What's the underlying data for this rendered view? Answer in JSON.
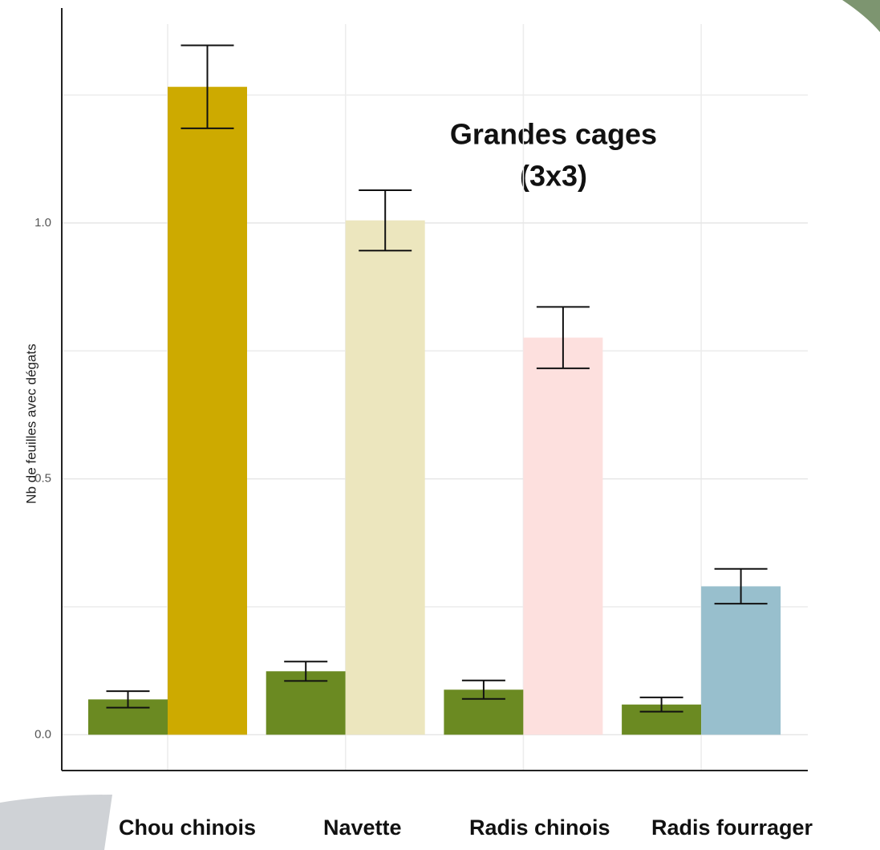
{
  "chart_data": {
    "type": "bar",
    "y_label": "Nb de feuilles avec dégats",
    "annotation": [
      "Grandes cages",
      "(3x3)"
    ],
    "categories": [
      "Chou chinois",
      "Navette",
      "Radis chinois",
      "Radis fourrager"
    ],
    "series": [
      {
        "color": "#6b8a22",
        "values": [
          0.069,
          0.124,
          0.088,
          0.059
        ],
        "errors": [
          0.016,
          0.019,
          0.018,
          0.014
        ]
      },
      {
        "colors": [
          "#cdaa00",
          "#ece6be",
          "#fde0de",
          "#98bfcd"
        ],
        "values": [
          1.266,
          1.005,
          0.776,
          0.29
        ],
        "errors": [
          0.081,
          0.059,
          0.06,
          0.034
        ]
      }
    ],
    "ylim": [
      -0.07,
      1.42
    ],
    "yticks": [
      {
        "value": 0,
        "label": "0.0"
      },
      0.5,
      {
        "value": 1,
        "label": "1.0"
      }
    ],
    "minor_yticks": [
      0.25,
      0.75,
      1.25
    ],
    "grid": true
  }
}
